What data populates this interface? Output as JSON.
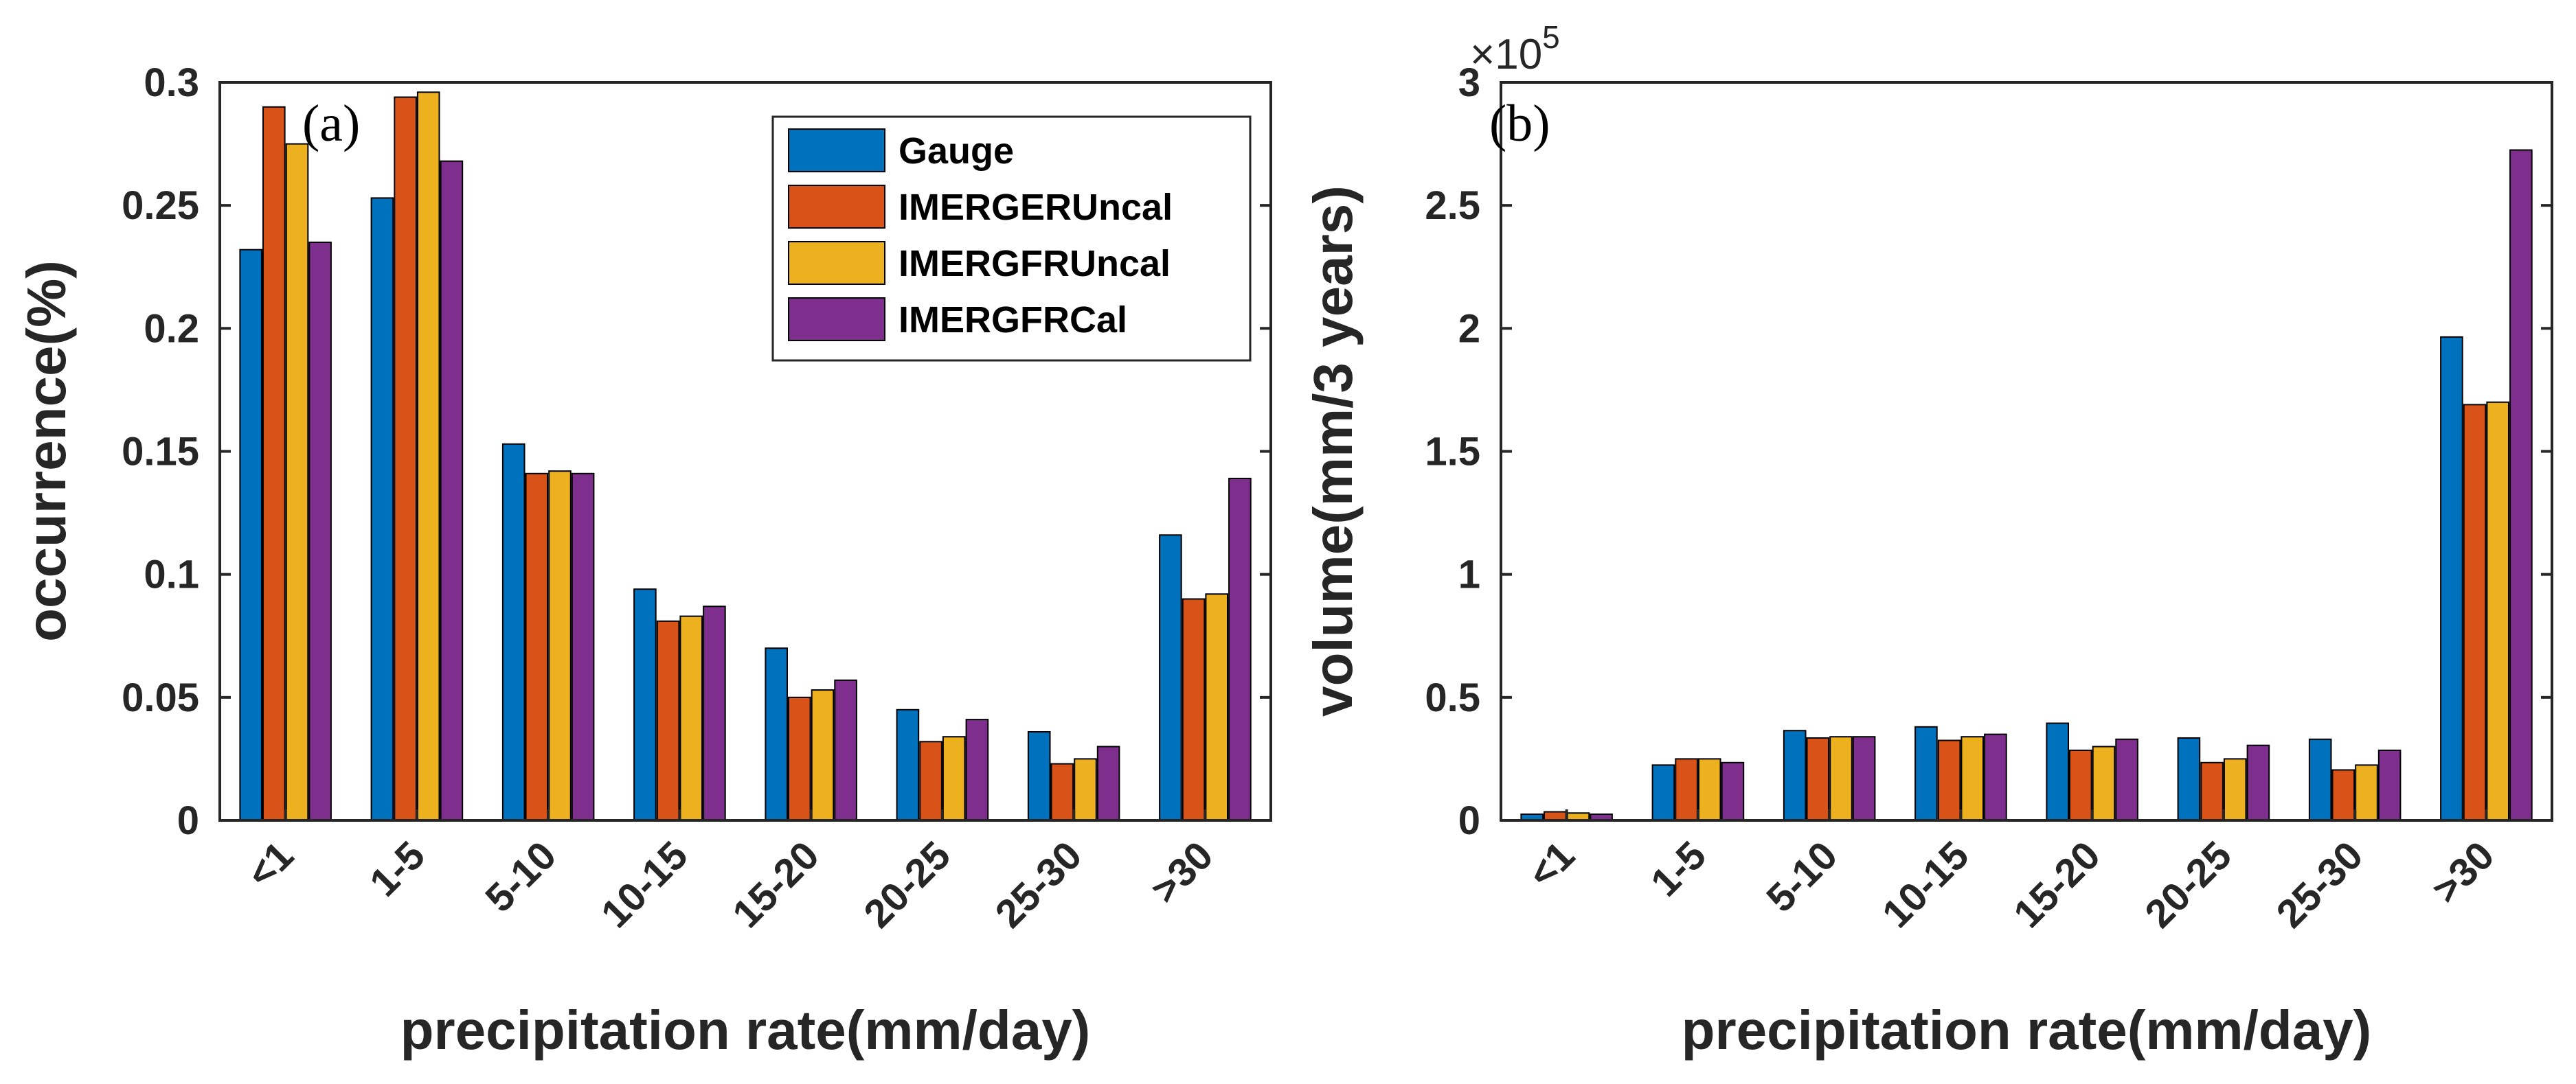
{
  "chart_data": [
    {
      "type": "bar",
      "panel_label": "(a)",
      "categories": [
        "<1",
        "1-5",
        "5-10",
        "10-15",
        "15-20",
        "20-25",
        "25-30",
        ">30"
      ],
      "series": [
        {
          "name": "Gauge",
          "values": [
            0.232,
            0.253,
            0.153,
            0.094,
            0.07,
            0.045,
            0.036,
            0.116
          ]
        },
        {
          "name": "IMERGERUncal",
          "values": [
            0.29,
            0.294,
            0.141,
            0.081,
            0.05,
            0.032,
            0.023,
            0.09
          ]
        },
        {
          "name": "IMERGFRUncal",
          "values": [
            0.275,
            0.296,
            0.142,
            0.083,
            0.053,
            0.034,
            0.025,
            0.092
          ]
        },
        {
          "name": "IMERGFRCal",
          "values": [
            0.235,
            0.268,
            0.141,
            0.087,
            0.057,
            0.041,
            0.03,
            0.139
          ]
        }
      ],
      "xlabel": "precipitation rate(mm/day)",
      "ylabel": "occurrence(%)",
      "ylim": [
        0,
        0.3
      ],
      "yticks": [
        0,
        0.05,
        0.1,
        0.15,
        0.2,
        0.25,
        0.3
      ],
      "ytick_labels": [
        "0",
        "0.05",
        "0.1",
        "0.15",
        "0.2",
        "0.25",
        "0.3"
      ],
      "legend_position": "top-right"
    },
    {
      "type": "bar",
      "panel_label": "(b)",
      "categories": [
        "<1",
        "1-5",
        "5-10",
        "10-15",
        "15-20",
        "20-25",
        "25-30",
        ">30"
      ],
      "series": [
        {
          "name": "Gauge",
          "values": [
            2500,
            22500,
            36500,
            38000,
            39500,
            33500,
            33000,
            196500
          ]
        },
        {
          "name": "IMERGERUncal",
          "values": [
            3500,
            25000,
            33500,
            32500,
            28500,
            23500,
            20500,
            169000
          ]
        },
        {
          "name": "IMERGFRUncal",
          "values": [
            3000,
            25000,
            34000,
            34000,
            30000,
            25000,
            22500,
            170000
          ]
        },
        {
          "name": "IMERGFRCal",
          "values": [
            2500,
            23500,
            34000,
            35000,
            33000,
            30500,
            28500,
            272500
          ]
        }
      ],
      "xlabel": "precipitation rate(mm/day)",
      "ylabel": "volume(mm/3 years)",
      "ylim": [
        0,
        300000
      ],
      "yticks": [
        0,
        50000,
        100000,
        150000,
        200000,
        250000,
        300000
      ],
      "ytick_labels": [
        "0",
        "0.5",
        "1",
        "1.5",
        "2",
        "2.5",
        "3"
      ],
      "exponent_label": {
        "prefix": "×10",
        "power": "5"
      }
    }
  ],
  "colors": {
    "Gauge": "#0072BD",
    "IMERGERUncal": "#D95319",
    "IMERGFRUncal": "#EDB120",
    "IMERGFRCal": "#7E2F8E"
  }
}
